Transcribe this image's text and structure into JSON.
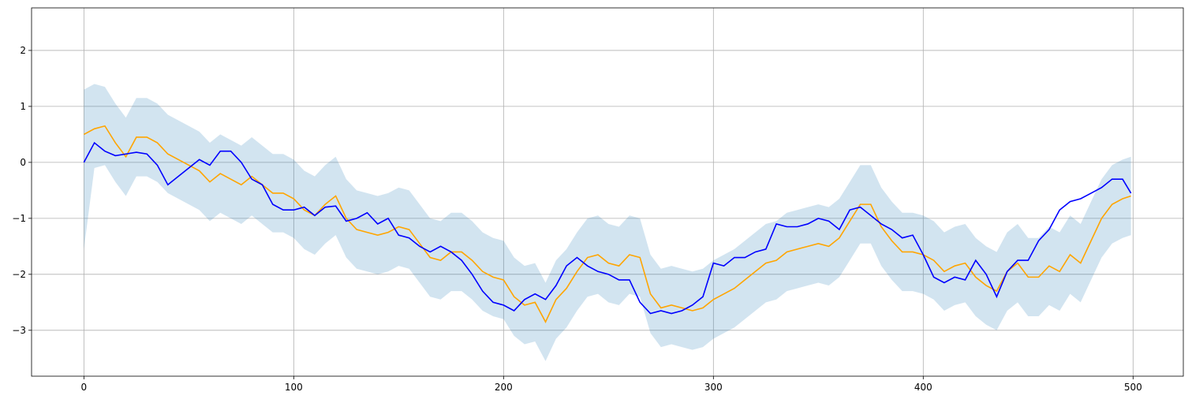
{
  "chart_data": {
    "type": "line",
    "grid": true,
    "xlim": [
      -24.95,
      523.95
    ],
    "ylim": [
      -3.82,
      2.76
    ],
    "xticks": [
      0,
      100,
      200,
      300,
      400,
      500
    ],
    "yticks": [
      {
        "value": -3,
        "label": "−3"
      },
      {
        "value": -2,
        "label": "−2"
      },
      {
        "value": -1,
        "label": "−1"
      },
      0,
      1,
      2
    ],
    "x": [
      0,
      5,
      10,
      15,
      20,
      25,
      30,
      35,
      40,
      45,
      50,
      55,
      60,
      65,
      70,
      75,
      80,
      85,
      90,
      95,
      100,
      105,
      110,
      115,
      120,
      125,
      130,
      135,
      140,
      145,
      150,
      155,
      160,
      165,
      170,
      175,
      180,
      185,
      190,
      195,
      200,
      205,
      210,
      215,
      220,
      225,
      230,
      235,
      240,
      245,
      250,
      255,
      260,
      265,
      270,
      275,
      280,
      285,
      290,
      295,
      300,
      305,
      310,
      315,
      320,
      325,
      330,
      335,
      340,
      345,
      350,
      355,
      360,
      365,
      370,
      375,
      380,
      385,
      390,
      395,
      400,
      405,
      410,
      415,
      420,
      425,
      430,
      435,
      440,
      445,
      450,
      455,
      460,
      465,
      470,
      475,
      480,
      485,
      490,
      495,
      499
    ],
    "band": {
      "color": "#1f77b4",
      "opacity": 0.2,
      "upper": [
        1.3,
        1.4,
        1.35,
        1.05,
        0.8,
        1.15,
        1.15,
        1.05,
        0.85,
        0.75,
        0.65,
        0.55,
        0.35,
        0.5,
        0.4,
        0.3,
        0.45,
        0.3,
        0.15,
        0.15,
        0.05,
        -0.15,
        -0.25,
        -0.05,
        0.1,
        -0.3,
        -0.5,
        -0.55,
        -0.6,
        -0.55,
        -0.45,
        -0.5,
        -0.75,
        -1.0,
        -1.05,
        -0.9,
        -0.9,
        -1.05,
        -1.25,
        -1.35,
        -1.4,
        -1.7,
        -1.85,
        -1.8,
        -2.15,
        -1.75,
        -1.55,
        -1.25,
        -1.0,
        -0.95,
        -1.1,
        -1.15,
        -0.95,
        -1.0,
        -1.65,
        -1.9,
        -1.85,
        -1.9,
        -1.95,
        -1.9,
        -1.75,
        -1.65,
        -1.55,
        -1.4,
        -1.25,
        -1.1,
        -1.05,
        -0.9,
        -0.85,
        -0.8,
        -0.75,
        -0.8,
        -0.65,
        -0.35,
        -0.05,
        -0.05,
        -0.45,
        -0.7,
        -0.9,
        -0.9,
        -0.95,
        -1.05,
        -1.25,
        -1.15,
        -1.1,
        -1.35,
        -1.5,
        -1.6,
        -1.25,
        -1.1,
        -1.35,
        -1.35,
        -1.15,
        -1.25,
        -0.95,
        -1.1,
        -0.7,
        -0.3,
        -0.05,
        0.05,
        0.1
      ],
      "lower": [
        -1.55,
        -0.1,
        -0.05,
        -0.35,
        -0.6,
        -0.25,
        -0.25,
        -0.35,
        -0.55,
        -0.65,
        -0.75,
        -0.85,
        -1.05,
        -0.9,
        -1.0,
        -1.1,
        -0.95,
        -1.1,
        -1.25,
        -1.25,
        -1.35,
        -1.55,
        -1.65,
        -1.45,
        -1.3,
        -1.7,
        -1.9,
        -1.95,
        -2.0,
        -1.95,
        -1.85,
        -1.9,
        -2.15,
        -2.4,
        -2.45,
        -2.3,
        -2.3,
        -2.45,
        -2.65,
        -2.75,
        -2.8,
        -3.1,
        -3.25,
        -3.2,
        -3.55,
        -3.15,
        -2.95,
        -2.65,
        -2.4,
        -2.35,
        -2.5,
        -2.55,
        -2.35,
        -2.4,
        -3.05,
        -3.3,
        -3.25,
        -3.3,
        -3.35,
        -3.3,
        -3.15,
        -3.05,
        -2.95,
        -2.8,
        -2.65,
        -2.5,
        -2.45,
        -2.3,
        -2.25,
        -2.2,
        -2.15,
        -2.2,
        -2.05,
        -1.75,
        -1.45,
        -1.45,
        -1.85,
        -2.1,
        -2.3,
        -2.3,
        -2.35,
        -2.45,
        -2.65,
        -2.55,
        -2.5,
        -2.75,
        -2.9,
        -3.0,
        -2.65,
        -2.5,
        -2.75,
        -2.75,
        -2.55,
        -2.65,
        -2.35,
        -2.5,
        -2.1,
        -1.7,
        -1.45,
        -1.35,
        -1.3
      ]
    },
    "series": [
      {
        "color": "#ffa500",
        "values": [
          0.5,
          0.6,
          0.65,
          0.35,
          0.1,
          0.45,
          0.45,
          0.35,
          0.15,
          0.05,
          -0.05,
          -0.15,
          -0.35,
          -0.2,
          -0.3,
          -0.4,
          -0.25,
          -0.4,
          -0.55,
          -0.55,
          -0.65,
          -0.85,
          -0.95,
          -0.75,
          -0.6,
          -1.0,
          -1.2,
          -1.25,
          -1.3,
          -1.25,
          -1.15,
          -1.2,
          -1.45,
          -1.7,
          -1.75,
          -1.6,
          -1.6,
          -1.75,
          -1.95,
          -2.05,
          -2.1,
          -2.4,
          -2.55,
          -2.5,
          -2.85,
          -2.45,
          -2.25,
          -1.95,
          -1.7,
          -1.65,
          -1.8,
          -1.85,
          -1.65,
          -1.7,
          -2.35,
          -2.6,
          -2.55,
          -2.6,
          -2.65,
          -2.6,
          -2.45,
          -2.35,
          -2.25,
          -2.1,
          -1.95,
          -1.8,
          -1.75,
          -1.6,
          -1.55,
          -1.5,
          -1.45,
          -1.5,
          -1.35,
          -1.05,
          -0.75,
          -0.75,
          -1.15,
          -1.4,
          -1.6,
          -1.6,
          -1.65,
          -1.75,
          -1.95,
          -1.85,
          -1.8,
          -2.05,
          -2.2,
          -2.3,
          -1.95,
          -1.8,
          -2.05,
          -2.05,
          -1.85,
          -1.95,
          -1.65,
          -1.8,
          -1.4,
          -1.0,
          -0.75,
          -0.65,
          -0.6
        ]
      },
      {
        "color": "#0000ff",
        "values": [
          0,
          0.35,
          0.2,
          0.12,
          0.15,
          0.18,
          0.15,
          -0.05,
          -0.4,
          -0.25,
          -0.1,
          0.05,
          -0.05,
          0.2,
          0.2,
          0.0,
          -0.3,
          -0.4,
          -0.75,
          -0.85,
          -0.85,
          -0.8,
          -0.95,
          -0.8,
          -0.78,
          -1.05,
          -1.0,
          -0.9,
          -1.1,
          -1.0,
          -1.3,
          -1.35,
          -1.5,
          -1.6,
          -1.5,
          -1.6,
          -1.75,
          -2.0,
          -2.3,
          -2.5,
          -2.55,
          -2.65,
          -2.45,
          -2.35,
          -2.45,
          -2.2,
          -1.85,
          -1.7,
          -1.85,
          -1.95,
          -2.0,
          -2.1,
          -2.1,
          -2.5,
          -2.7,
          -2.65,
          -2.7,
          -2.65,
          -2.55,
          -2.4,
          -1.8,
          -1.85,
          -1.7,
          -1.7,
          -1.6,
          -1.55,
          -1.1,
          -1.15,
          -1.15,
          -1.1,
          -1.0,
          -1.05,
          -1.2,
          -0.85,
          -0.8,
          -0.95,
          -1.1,
          -1.2,
          -1.35,
          -1.3,
          -1.65,
          -2.05,
          -2.15,
          -2.05,
          -2.1,
          -1.75,
          -2.0,
          -2.4,
          -1.95,
          -1.75,
          -1.75,
          -1.4,
          -1.2,
          -0.85,
          -0.7,
          -0.65,
          -0.55,
          -0.45,
          -0.3,
          -0.3,
          -0.55
        ]
      }
    ]
  }
}
